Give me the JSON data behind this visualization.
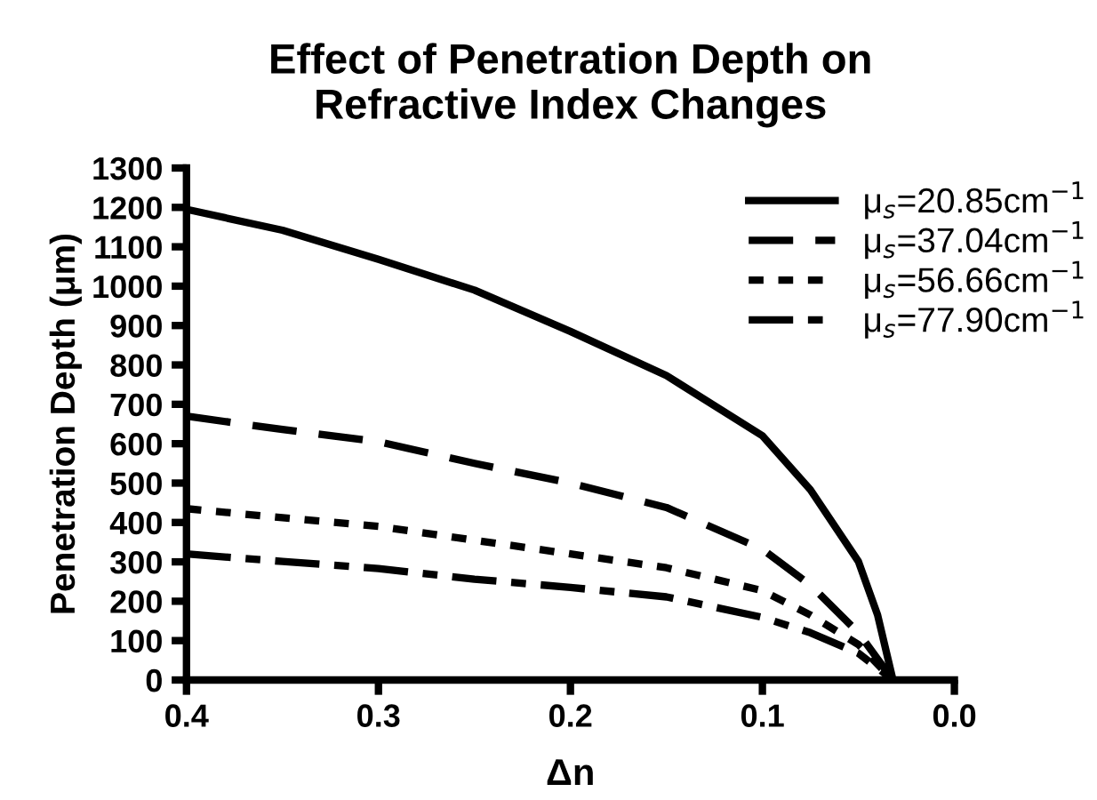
{
  "chart_data": {
    "type": "line",
    "title": "Effect of Penetration Depth on\nRefractive Index Changes",
    "xlabel": "Δn",
    "ylabel": "Penetration Depth (μm)",
    "xlim": [
      0.4,
      0.0
    ],
    "xticks": [
      {
        "value": 0.4,
        "label": "0.4"
      },
      {
        "value": 0.3,
        "label": "0.3"
      },
      {
        "value": 0.2,
        "label": "0.2"
      },
      {
        "value": 0.1,
        "label": "0.1"
      },
      {
        "value": 0.0,
        "label": "0.0"
      }
    ],
    "ylim": [
      0,
      1300
    ],
    "yticks": [
      0,
      100,
      200,
      300,
      400,
      500,
      600,
      700,
      800,
      900,
      1000,
      1100,
      1200,
      1300
    ],
    "x": [
      0.4,
      0.35,
      0.3,
      0.25,
      0.2,
      0.15,
      0.1,
      0.075,
      0.05,
      0.04,
      0.032
    ],
    "grid": false,
    "legend": "top right",
    "marker": "none",
    "series": [
      {
        "name": "μ$_{s}$=20.85cm$^{−1}$",
        "color": "#000000",
        "line_style": "solid",
        "values": [
          1195,
          1142,
          1068,
          990,
          885,
          773,
          620,
          483,
          301,
          165,
          0
        ]
      },
      {
        "name": "μ$_{s}$=37.04cm$^{−1}$",
        "color": "#000000",
        "line_style": "dashed",
        "x": [
          0.4,
          0.35,
          0.3,
          0.25,
          0.2,
          0.15,
          0.1,
          0.075,
          0.05,
          0.032
        ],
        "values": [
          670,
          636,
          605,
          550,
          500,
          438,
          332,
          241,
          120,
          0
        ]
      },
      {
        "name": "μ$_{s}$=56.66cm$^{−1}$",
        "color": "#000000",
        "line_style": "dotted",
        "x": [
          0.4,
          0.35,
          0.3,
          0.25,
          0.2,
          0.15,
          0.1,
          0.075,
          0.05,
          0.032
        ],
        "values": [
          435,
          412,
          390,
          355,
          320,
          285,
          227,
          165,
          90,
          0
        ]
      },
      {
        "name": "μ$_{s}$=77.90cm$^{−1}$",
        "color": "#000000",
        "line_style": "dashdot",
        "x": [
          0.4,
          0.35,
          0.3,
          0.25,
          0.2,
          0.15,
          0.1,
          0.075,
          0.05,
          0.032
        ],
        "values": [
          320,
          301,
          283,
          256,
          235,
          211,
          159,
          120,
          68,
          0
        ]
      }
    ]
  }
}
